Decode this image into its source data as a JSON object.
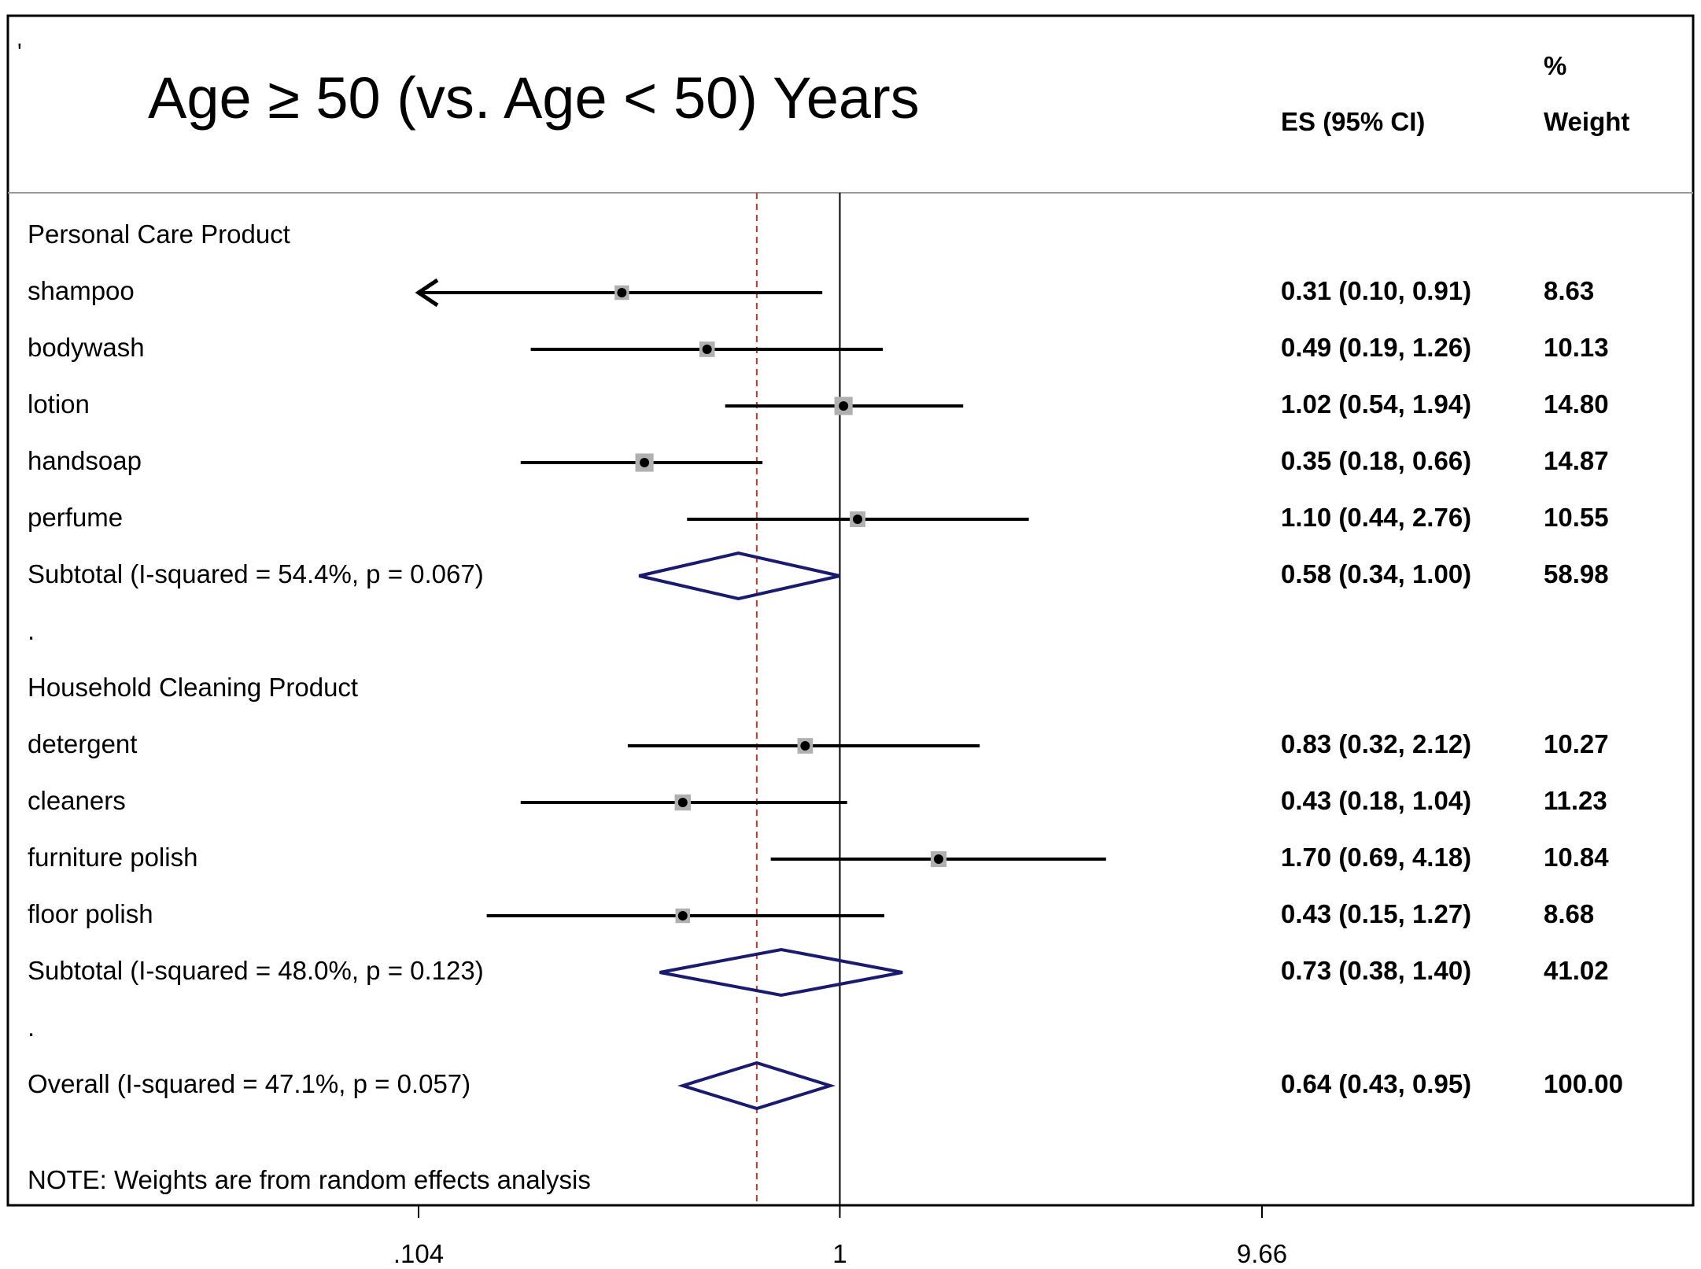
{
  "chart_data": {
    "type": "forest",
    "title": "Age ≥ 50 (vs. Age < 50) Years",
    "corner_mark": "'",
    "columns": {
      "es": "ES (95% CI)",
      "weight_top": "%",
      "weight_bottom": "Weight"
    },
    "x_scale": "log",
    "xlim": [
      0.104,
      9.66
    ],
    "x_ticks": [
      {
        "value": 0.104,
        "label": ".104"
      },
      {
        "value": 1,
        "label": "1"
      },
      {
        "value": 9.66,
        "label": "9.66"
      }
    ],
    "null_line": 1,
    "overall_line": 0.64,
    "rows": [
      {
        "type": "header",
        "label": "Personal Care Product"
      },
      {
        "type": "study",
        "label": "shampoo",
        "es": 0.31,
        "lo": 0.1,
        "hi": 0.91,
        "text": "0.31 (0.10, 0.91)",
        "weight": "8.63",
        "arrow_left": true
      },
      {
        "type": "study",
        "label": "bodywash",
        "es": 0.49,
        "lo": 0.19,
        "hi": 1.26,
        "text": "0.49 (0.19, 1.26)",
        "weight": "10.13"
      },
      {
        "type": "study",
        "label": "lotion",
        "es": 1.02,
        "lo": 0.54,
        "hi": 1.94,
        "text": "1.02 (0.54, 1.94)",
        "weight": "14.80"
      },
      {
        "type": "study",
        "label": "handsoap",
        "es": 0.35,
        "lo": 0.18,
        "hi": 0.66,
        "text": "0.35 (0.18, 0.66)",
        "weight": "14.87"
      },
      {
        "type": "study",
        "label": "perfume",
        "es": 1.1,
        "lo": 0.44,
        "hi": 2.76,
        "text": "1.10 (0.44, 2.76)",
        "weight": "10.55"
      },
      {
        "type": "subtotal",
        "label": "Subtotal  (I-squared = 54.4%, p = 0.067)",
        "es": 0.58,
        "lo": 0.34,
        "hi": 1.0,
        "text": "0.58 (0.34, 1.00)",
        "weight": "58.98"
      },
      {
        "type": "spacer",
        "label": "."
      },
      {
        "type": "header",
        "label": "Household Cleaning Product"
      },
      {
        "type": "study",
        "label": "detergent",
        "es": 0.83,
        "lo": 0.32,
        "hi": 2.12,
        "text": "0.83 (0.32, 2.12)",
        "weight": "10.27"
      },
      {
        "type": "study",
        "label": "cleaners",
        "es": 0.43,
        "lo": 0.18,
        "hi": 1.04,
        "text": "0.43 (0.18, 1.04)",
        "weight": "11.23"
      },
      {
        "type": "study",
        "label": "furniture polish",
        "es": 1.7,
        "lo": 0.69,
        "hi": 4.18,
        "text": "1.70 (0.69, 4.18)",
        "weight": "10.84"
      },
      {
        "type": "study",
        "label": "floor polish",
        "es": 0.43,
        "lo": 0.15,
        "hi": 1.27,
        "text": "0.43 (0.15, 1.27)",
        "weight": "8.68"
      },
      {
        "type": "subtotal",
        "label": "Subtotal  (I-squared = 48.0%, p = 0.123)",
        "es": 0.73,
        "lo": 0.38,
        "hi": 1.4,
        "text": "0.73 (0.38, 1.40)",
        "weight": "41.02"
      },
      {
        "type": "spacer",
        "label": "."
      },
      {
        "type": "subtotal",
        "label": "Overall  (I-squared = 47.1%, p = 0.057)",
        "es": 0.64,
        "lo": 0.43,
        "hi": 0.95,
        "text": "0.64 (0.43, 0.95)",
        "weight": "100.00"
      }
    ],
    "note": "NOTE: Weights are from random effects analysis",
    "colors": {
      "diamond": "#1a1a6e",
      "reference": "#c0392b",
      "box": "#b0b0b0",
      "line": "#000000"
    }
  }
}
